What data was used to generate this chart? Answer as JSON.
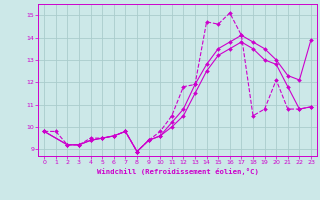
{
  "xlabel": "Windchill (Refroidissement éolien,°C)",
  "bg_color": "#cce8e8",
  "line_color": "#cc00cc",
  "grid_color": "#aacccc",
  "xlim": [
    -0.5,
    23.5
  ],
  "ylim": [
    8.7,
    15.5
  ],
  "xticks": [
    0,
    1,
    2,
    3,
    4,
    5,
    6,
    7,
    8,
    9,
    10,
    11,
    12,
    13,
    14,
    15,
    16,
    17,
    18,
    19,
    20,
    21,
    22,
    23
  ],
  "yticks": [
    9,
    10,
    11,
    12,
    13,
    14,
    15
  ],
  "line1_dashed": {
    "x": [
      0,
      1,
      2,
      3,
      4,
      5,
      6,
      7,
      8,
      9,
      10,
      11,
      12,
      13,
      14,
      15,
      16,
      17,
      18,
      19,
      20,
      21,
      22,
      23
    ],
    "y": [
      9.8,
      9.8,
      9.2,
      9.2,
      9.5,
      9.5,
      9.6,
      9.8,
      8.9,
      9.4,
      9.8,
      10.5,
      11.8,
      11.9,
      14.7,
      14.6,
      15.1,
      14.1,
      10.5,
      10.8,
      12.1,
      10.8,
      10.8,
      10.9
    ]
  },
  "line2_solid": {
    "x": [
      0,
      2,
      3,
      4,
      5,
      6,
      7,
      8,
      9,
      10,
      11,
      12,
      13,
      14,
      15,
      16,
      17,
      18,
      19,
      20,
      21,
      22,
      23
    ],
    "y": [
      9.8,
      9.2,
      9.2,
      9.4,
      9.5,
      9.6,
      9.8,
      8.9,
      9.4,
      9.6,
      10.2,
      10.8,
      11.9,
      12.8,
      13.5,
      13.8,
      14.1,
      13.8,
      13.5,
      13.0,
      12.3,
      12.1,
      13.9
    ]
  },
  "line3_solid": {
    "x": [
      0,
      2,
      3,
      4,
      5,
      6,
      7,
      8,
      9,
      10,
      11,
      12,
      13,
      14,
      15,
      16,
      17,
      18,
      19,
      20,
      21,
      22,
      23
    ],
    "y": [
      9.8,
      9.2,
      9.2,
      9.4,
      9.5,
      9.6,
      9.8,
      8.9,
      9.4,
      9.6,
      10.0,
      10.5,
      11.5,
      12.5,
      13.2,
      13.5,
      13.8,
      13.5,
      13.0,
      12.8,
      11.8,
      10.8,
      10.9
    ]
  }
}
